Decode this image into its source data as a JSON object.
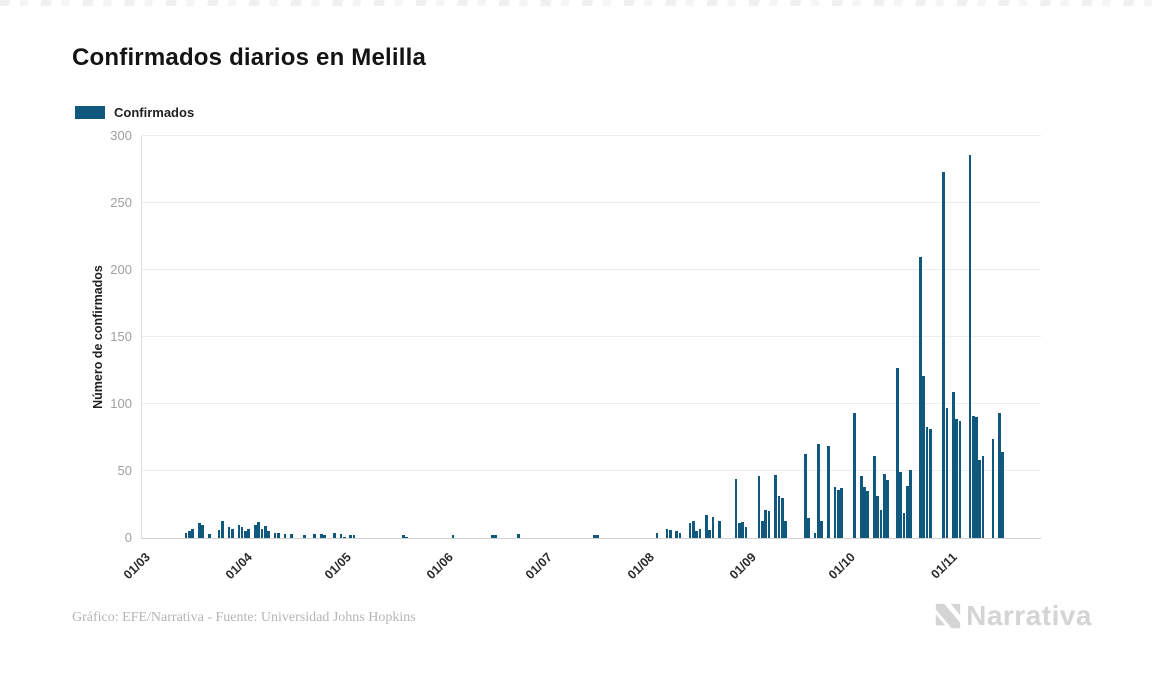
{
  "page": {
    "title": "Confirmados diarios en Melilla"
  },
  "legend": {
    "label": "Confirmados",
    "color": "#10587e"
  },
  "footer": {
    "credit": "Gráfico: EFE/Narrativa - Fuente: Universidad Johns Hopkins",
    "brand": "Narrativa"
  },
  "chart_data": {
    "type": "bar",
    "title": "Confirmados diarios en Melilla",
    "series_name": "Confirmados",
    "xlabel": "",
    "ylabel": "Número de confirmados",
    "ylim": [
      0,
      300
    ],
    "yticks": [
      0,
      50,
      100,
      150,
      200,
      250,
      300
    ],
    "grid": "horizontal",
    "legend_position": "top-left",
    "bar_color": "#10587e",
    "start_date": "2020-03-01",
    "num_days": 273,
    "x_tick_labels": [
      "01/03",
      "01/04",
      "01/05",
      "01/06",
      "01/07",
      "01/08",
      "01/09",
      "01/10",
      "01/11"
    ],
    "x_tick_day_index": [
      0,
      31,
      61,
      92,
      122,
      153,
      184,
      214,
      245
    ],
    "values": [
      0,
      0,
      0,
      0,
      0,
      0,
      0,
      0,
      0,
      0,
      0,
      0,
      0,
      4,
      5,
      7,
      0,
      11,
      10,
      0,
      3,
      0,
      0,
      6,
      13,
      0,
      8,
      7,
      0,
      10,
      8,
      5,
      7,
      0,
      10,
      12,
      7,
      9,
      5,
      0,
      4,
      4,
      0,
      3,
      0,
      3,
      0,
      0,
      0,
      2,
      0,
      0,
      3,
      0,
      3,
      2,
      0,
      0,
      4,
      0,
      3,
      1,
      0,
      2,
      2,
      0,
      0,
      0,
      0,
      0,
      0,
      0,
      0,
      0,
      0,
      0,
      0,
      0,
      0,
      2,
      1,
      0,
      0,
      0,
      0,
      0,
      0,
      0,
      0,
      0,
      0,
      0,
      0,
      0,
      2,
      0,
      0,
      0,
      0,
      0,
      0,
      0,
      0,
      0,
      0,
      0,
      2,
      2,
      0,
      0,
      0,
      0,
      0,
      0,
      3,
      0,
      0,
      0,
      0,
      0,
      0,
      0,
      0,
      0,
      0,
      0,
      0,
      0,
      0,
      0,
      0,
      0,
      0,
      0,
      0,
      0,
      0,
      2,
      2,
      0,
      0,
      0,
      0,
      0,
      0,
      0,
      0,
      0,
      0,
      0,
      0,
      0,
      0,
      0,
      0,
      0,
      4,
      0,
      0,
      7,
      6,
      0,
      5,
      4,
      0,
      0,
      11,
      13,
      5,
      7,
      0,
      17,
      6,
      16,
      0,
      13,
      0,
      0,
      0,
      0,
      44,
      11,
      12,
      8,
      0,
      0,
      0,
      46,
      13,
      21,
      20,
      0,
      47,
      31,
      30,
      13,
      0,
      0,
      0,
      0,
      0,
      63,
      15,
      0,
      4,
      70,
      13,
      0,
      69,
      0,
      38,
      36,
      37,
      0,
      0,
      0,
      93,
      0,
      46,
      38,
      35,
      0,
      61,
      31,
      21,
      48,
      43,
      0,
      0,
      127,
      49,
      19,
      39,
      51,
      0,
      0,
      210,
      121,
      83,
      81,
      0,
      0,
      0,
      273,
      97,
      0,
      109,
      89,
      87,
      0,
      0,
      286,
      91,
      90,
      58,
      61,
      0,
      0,
      74,
      0,
      93,
      64,
      0,
      0,
      0,
      0,
      0,
      0,
      0,
      0,
      0,
      0,
      0
    ]
  },
  "geometry_note": "bars are daily values from start_date; zero means no bar drawn"
}
